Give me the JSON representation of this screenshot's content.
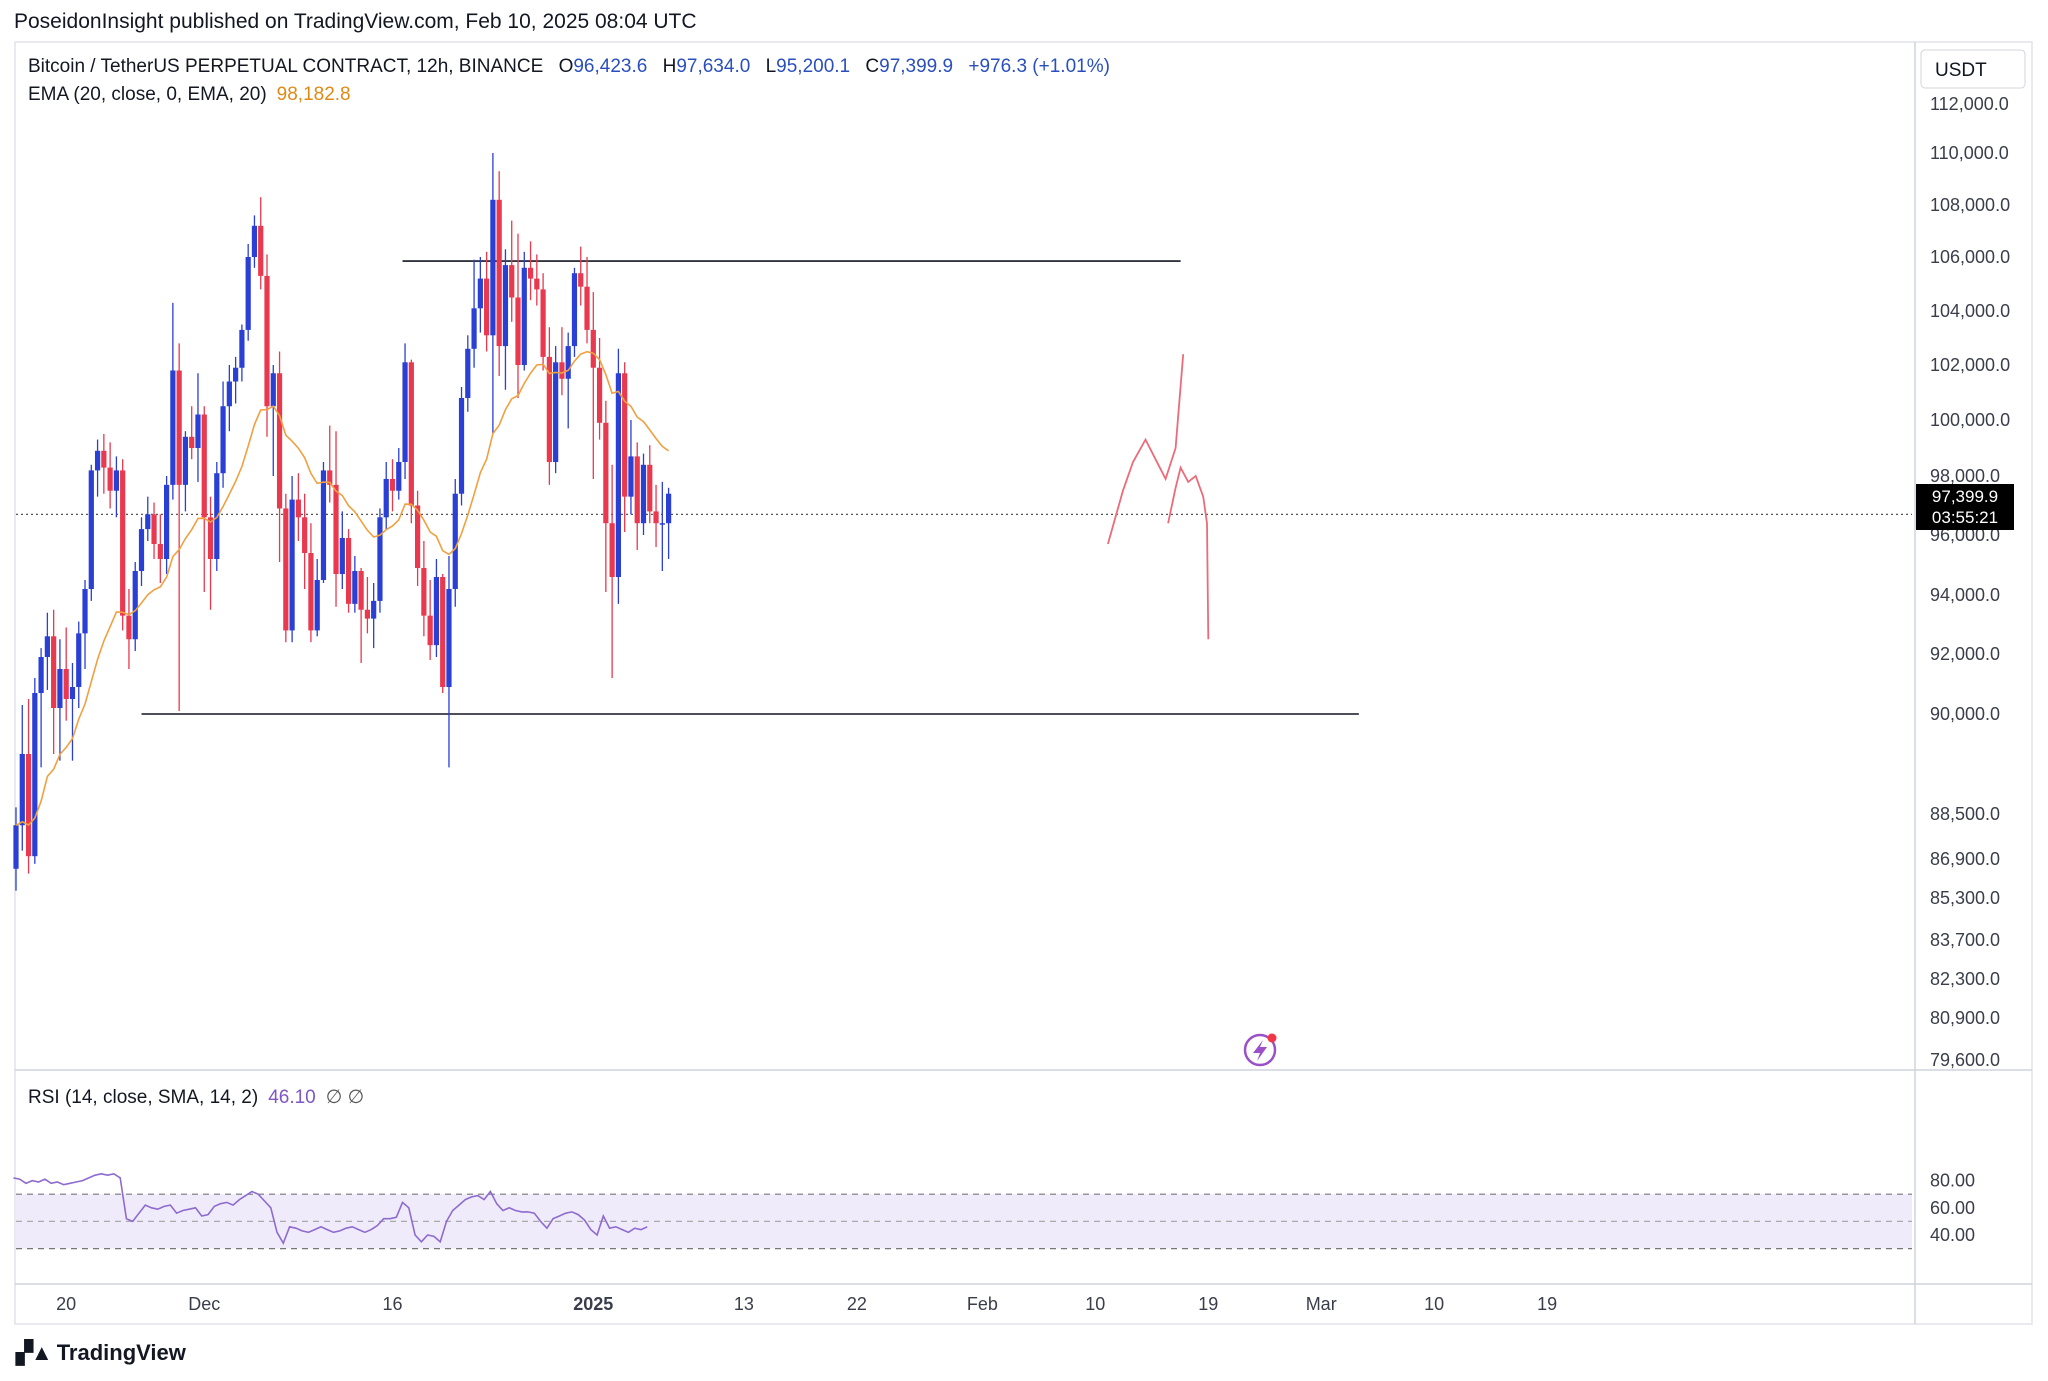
{
  "publisher": "PoseidonInsight published on TradingView.com, Feb 10, 2025 08:04 UTC",
  "legend": {
    "symbol": "Bitcoin / TetherUS PERPETUAL CONTRACT, 12h, BINANCE",
    "o_label": "O",
    "o": "96,423.6",
    "h_label": "H",
    "h": "97,634.0",
    "l_label": "L",
    "l": "95,200.1",
    "c_label": "C",
    "c": "97,399.9",
    "change": "+976.3 (+1.01%)",
    "ema_label": "EMA (20, close, 0, EMA, 20)",
    "ema_value": "98,182.8",
    "rsi_label": "RSI (14, close, SMA, 14, 2)",
    "rsi_value": "46.10",
    "rsi_extra": "∅ ∅"
  },
  "brand": "TradingView",
  "currency": "USDT",
  "current_price": {
    "value": "97,399.9",
    "countdown": "03:55:21"
  },
  "colors": {
    "up": "#2a3fd4",
    "down": "#e8394f",
    "ema": "#f0a040",
    "rsi": "#8e6bcf",
    "rsi_band": "#f0ebfb",
    "projection": "#ec6b7a"
  },
  "chart_data": [
    {
      "type": "candlestick",
      "interval": "12h",
      "y_ticks": [
        79600,
        80900,
        82300,
        83700,
        85300,
        86900,
        88500,
        90000,
        92000,
        94000,
        96000,
        98000,
        100000,
        102000,
        104000,
        106000,
        108000,
        110000,
        112000
      ],
      "y_tick_labels": [
        "79,600.0",
        "80,900.0",
        "82,300.0",
        "83,700.0",
        "85,300.0",
        "86,900.0",
        "88,500.0",
        "90,000.0",
        "92,000.0",
        "94,000.0",
        "96,000.0",
        "98,000.0",
        "100,000.0",
        "102,000.0",
        "104,000.0",
        "106,000.0",
        "108,000.0",
        "110,000.0",
        "112,000.0"
      ],
      "x_ticks": [
        {
          "label": "20",
          "day": 4,
          "bold": false
        },
        {
          "label": "Dec",
          "day": 15,
          "bold": false
        },
        {
          "label": "16",
          "day": 30,
          "bold": false
        },
        {
          "label": "2025",
          "day": 46,
          "bold": true
        },
        {
          "label": "13",
          "day": 58,
          "bold": false
        },
        {
          "label": "22",
          "day": 67,
          "bold": false
        },
        {
          "label": "Feb",
          "day": 77,
          "bold": false
        },
        {
          "label": "10",
          "day": 86,
          "bold": false
        },
        {
          "label": "19",
          "day": 95,
          "bold": false
        },
        {
          "label": "Mar",
          "day": 104,
          "bold": false
        },
        {
          "label": "10",
          "day": 113,
          "bold": false
        },
        {
          "label": "19",
          "day": 122,
          "bold": false
        }
      ],
      "horizontal_lines": [
        {
          "price": 105850,
          "from_day": 30.8,
          "to_day": 92.8
        },
        {
          "price": 90000,
          "from_day": 10,
          "to_day": 107
        }
      ],
      "price_line": 96700,
      "ema_period": 20,
      "candles": [
        [
          86500,
          88600,
          85600,
          88100
        ],
        [
          88100,
          90300,
          87200,
          89400
        ],
        [
          89400,
          90500,
          86300,
          87000
        ],
        [
          87000,
          91200,
          86700,
          90700
        ],
        [
          90700,
          92200,
          89200,
          91900
        ],
        [
          91900,
          93400,
          90800,
          92600
        ],
        [
          92600,
          93500,
          89400,
          90200
        ],
        [
          90200,
          92500,
          89300,
          91500
        ],
        [
          91500,
          92900,
          89900,
          90500
        ],
        [
          90500,
          91700,
          89300,
          90900
        ],
        [
          90900,
          93100,
          90200,
          92700
        ],
        [
          92700,
          94500,
          91500,
          94200
        ],
        [
          94200,
          98400,
          93800,
          98200
        ],
        [
          98200,
          99300,
          97300,
          98900
        ],
        [
          98900,
          99500,
          97400,
          98300
        ],
        [
          98300,
          99200,
          96900,
          97500
        ],
        [
          97500,
          98700,
          96600,
          98200
        ],
        [
          98200,
          98600,
          92800,
          93300
        ],
        [
          93300,
          94200,
          91500,
          92500
        ],
        [
          92500,
          95100,
          92100,
          94800
        ],
        [
          94800,
          96600,
          94300,
          96200
        ],
        [
          96200,
          97300,
          95800,
          96700
        ],
        [
          96700,
          97100,
          95200,
          95700
        ],
        [
          95700,
          96700,
          94400,
          95200
        ],
        [
          95200,
          98000,
          94700,
          97700
        ],
        [
          97700,
          104300,
          97200,
          101800
        ],
        [
          101800,
          102800,
          90100,
          97700
        ],
        [
          97700,
          99600,
          96800,
          99400
        ],
        [
          99400,
          100500,
          98600,
          99000
        ],
        [
          99000,
          101700,
          97800,
          100200
        ],
        [
          100200,
          100500,
          94100,
          96600
        ],
        [
          96600,
          97300,
          93500,
          95200
        ],
        [
          95200,
          98500,
          94800,
          98100
        ],
        [
          98100,
          101400,
          97600,
          100500
        ],
        [
          100500,
          102000,
          99600,
          101400
        ],
        [
          101400,
          102300,
          100600,
          101900
        ],
        [
          101900,
          103500,
          101400,
          103300
        ],
        [
          103300,
          106500,
          102900,
          106000
        ],
        [
          106000,
          107600,
          105600,
          107200
        ],
        [
          107200,
          108300,
          104800,
          105300
        ],
        [
          105300,
          106100,
          99400,
          100500
        ],
        [
          100500,
          102000,
          98000,
          101700
        ],
        [
          101700,
          102500,
          95100,
          96900
        ],
        [
          96900,
          97400,
          92400,
          92800
        ],
        [
          92800,
          98000,
          92400,
          97200
        ],
        [
          97200,
          98100,
          95800,
          96600
        ],
        [
          96600,
          97400,
          94200,
          95400
        ],
        [
          95400,
          96400,
          92400,
          92800
        ],
        [
          92800,
          95200,
          92600,
          94500
        ],
        [
          94500,
          98500,
          94400,
          98200
        ],
        [
          98200,
          99800,
          97100,
          97700
        ],
        [
          97700,
          99600,
          93600,
          94700
        ],
        [
          94700,
          96800,
          94200,
          95900
        ],
        [
          95900,
          96200,
          93400,
          93700
        ],
        [
          93700,
          95300,
          93400,
          94800
        ],
        [
          94800,
          94900,
          91700,
          93500
        ],
        [
          93500,
          94600,
          92700,
          93200
        ],
        [
          93200,
          94400,
          92200,
          93800
        ],
        [
          93800,
          96900,
          93400,
          96600
        ],
        [
          96600,
          98500,
          96200,
          97900
        ],
        [
          97900,
          98600,
          96800,
          97500
        ],
        [
          97500,
          99000,
          97200,
          98500
        ],
        [
          98500,
          102800,
          97900,
          102100
        ],
        [
          102100,
          102200,
          96400,
          97000
        ],
        [
          97000,
          97500,
          94300,
          94900
        ],
        [
          94900,
          95800,
          92600,
          93300
        ],
        [
          93300,
          94500,
          91800,
          92300
        ],
        [
          92300,
          95200,
          91900,
          94600
        ],
        [
          94600,
          94700,
          90700,
          90900
        ],
        [
          90900,
          95300,
          89200,
          94200
        ],
        [
          94200,
          97900,
          93600,
          97400
        ],
        [
          97400,
          101200,
          97000,
          100800
        ],
        [
          100800,
          103100,
          100300,
          102600
        ],
        [
          102600,
          105900,
          101900,
          104100
        ],
        [
          104100,
          106000,
          103200,
          105200
        ],
        [
          105200,
          106200,
          102500,
          103100
        ],
        [
          103100,
          110000,
          99500,
          108200
        ],
        [
          108200,
          109300,
          101600,
          102700
        ],
        [
          102700,
          106300,
          101100,
          105700
        ],
        [
          105700,
          107400,
          103600,
          104500
        ],
        [
          104500,
          106900,
          100800,
          102000
        ],
        [
          102000,
          106200,
          101800,
          105600
        ],
        [
          105600,
          106600,
          104400,
          105200
        ],
        [
          105200,
          106100,
          104200,
          104800
        ],
        [
          104800,
          105400,
          101800,
          102300
        ],
        [
          102300,
          103400,
          97700,
          98500
        ],
        [
          98500,
          102700,
          98100,
          102100
        ],
        [
          102100,
          103400,
          100900,
          101500
        ],
        [
          101500,
          103200,
          99700,
          102700
        ],
        [
          102700,
          105600,
          102300,
          105400
        ],
        [
          105400,
          106400,
          104200,
          104900
        ],
        [
          104900,
          106000,
          102800,
          103300
        ],
        [
          103300,
          104700,
          97900,
          101900
        ],
        [
          101900,
          103000,
          99300,
          99900
        ],
        [
          99900,
          100700,
          94100,
          96400
        ],
        [
          96400,
          98400,
          91200,
          94600
        ],
        [
          94600,
          102600,
          93700,
          101700
        ],
        [
          101700,
          102100,
          96100,
          97300
        ],
        [
          97300,
          100000,
          96700,
          98700
        ],
        [
          98700,
          99200,
          95500,
          96400
        ],
        [
          96400,
          98800,
          96000,
          98400
        ],
        [
          98400,
          99100,
          96400,
          96800
        ],
        [
          96800,
          97700,
          95600,
          96400
        ],
        [
          96400,
          97800,
          94800,
          96400
        ],
        [
          96400,
          97600,
          95200,
          97400
        ]
      ],
      "projection_path": [
        [
          87.0,
          95700
        ],
        [
          88.2,
          97500
        ],
        [
          89.0,
          98500
        ],
        [
          90.0,
          99300
        ],
        [
          90.8,
          98600
        ],
        [
          91.6,
          97900
        ],
        [
          92.4,
          99000
        ],
        [
          93.0,
          102400
        ],
        [
          91.8,
          96400
        ],
        [
          92.4,
          97600
        ],
        [
          92.8,
          98300
        ],
        [
          93.4,
          97800
        ],
        [
          94.0,
          98000
        ],
        [
          94.6,
          97300
        ],
        [
          94.9,
          96400
        ],
        [
          95.0,
          92500
        ]
      ]
    },
    {
      "type": "line",
      "name": "RSI",
      "y_ticks": [
        40,
        60,
        80
      ],
      "y_tick_labels": [
        "40.00",
        "60.00",
        "80.00"
      ],
      "band_upper": 70,
      "band_middle": 50,
      "band_lower": 30,
      "values": [
        82,
        81,
        78,
        80,
        79,
        81,
        78,
        79,
        77,
        78,
        79,
        80,
        82,
        84,
        85,
        84,
        85,
        82,
        52,
        50,
        56,
        62,
        60,
        59,
        61,
        62,
        56,
        58,
        59,
        60,
        54,
        55,
        61,
        63,
        64,
        62,
        66,
        69,
        72,
        70,
        65,
        60,
        42,
        34,
        46,
        45,
        43,
        42,
        44,
        46,
        44,
        42,
        43,
        45,
        46,
        44,
        42,
        44,
        47,
        52,
        52,
        53,
        64,
        60,
        40,
        35,
        40,
        39,
        35,
        50,
        58,
        62,
        66,
        68,
        69,
        66,
        72,
        63,
        58,
        60,
        58,
        57,
        57,
        56,
        50,
        45,
        52,
        54,
        56,
        57,
        55,
        51,
        44,
        40,
        54,
        45,
        46,
        44,
        42,
        45,
        44,
        46
      ]
    }
  ]
}
